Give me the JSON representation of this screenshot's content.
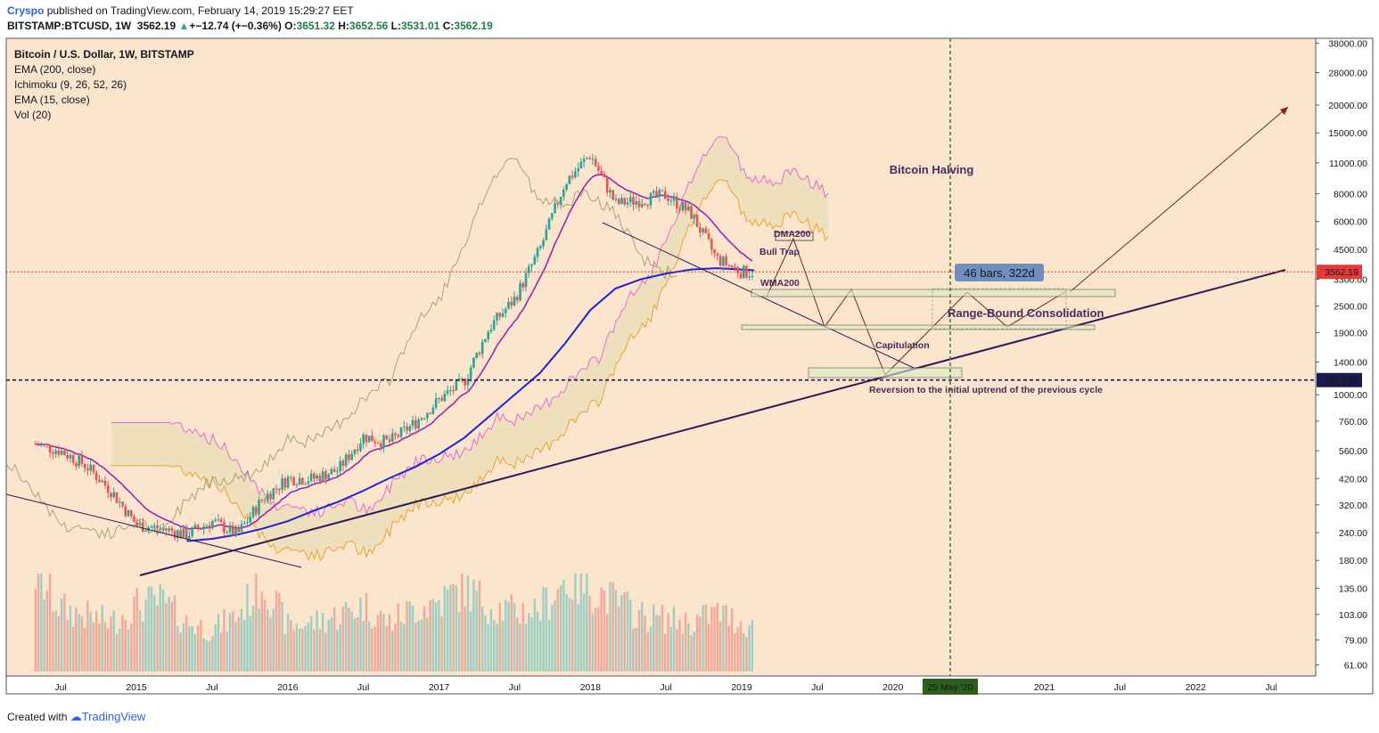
{
  "header": {
    "author": "Cryspo",
    "published_text": "published on TradingView.com, February 14, 2019 15:29:27 EET",
    "symbol": "BITSTAMP:BTCUSD, 1W",
    "last": "3562.19",
    "change": "+−12.74 (+−0.36%)",
    "open_label": "O:",
    "open": "3651.32",
    "high_label": "H:",
    "high": "3652.56",
    "low_label": "L:",
    "low": "3531.01",
    "close_label": "C:",
    "close": "3562.19"
  },
  "legend": {
    "title": "Bitcoin / U.S. Dollar, 1W, BITSTAMP",
    "indicators": [
      "EMA (200, close)",
      "Ichimoku (9, 26, 52, 26)",
      "EMA (15, close)",
      "Vol (20)"
    ]
  },
  "colors": {
    "background": "#fbe5cd",
    "candle_up": "#26a69a",
    "candle_down": "#ef5350",
    "ema200": "#1f23d6",
    "ema15": "#9c27b0",
    "cloud_bear": "#f9c9b0",
    "cloud_bull": "#e6dcb0",
    "trendline": "#2c1a5c",
    "halving_line": "#2e7d32",
    "price_marker": "#e53935",
    "support_marker": "#1a1a4e",
    "bars_badge": "#6f8fbf"
  },
  "chart_data": {
    "type": "candlestick",
    "scale": "log",
    "ylim": [
      55,
      45000
    ],
    "x": [
      "2014-05",
      "2014-07",
      "2014-09",
      "2014-11",
      "2015-01",
      "2015-03",
      "2015-05",
      "2015-07",
      "2015-09",
      "2015-11",
      "2016-01",
      "2016-03",
      "2016-05",
      "2016-07",
      "2016-09",
      "2016-11",
      "2017-01",
      "2017-03",
      "2017-05",
      "2017-07",
      "2017-09",
      "2017-11",
      "2018-01",
      "2018-03",
      "2018-05",
      "2018-07",
      "2018-09",
      "2018-11",
      "2019-01",
      "2019-02"
    ],
    "close": [
      600,
      560,
      480,
      370,
      260,
      250,
      235,
      270,
      235,
      340,
      420,
      420,
      460,
      650,
      610,
      740,
      950,
      1150,
      2000,
      2700,
      4500,
      9000,
      12000,
      7200,
      7500,
      7900,
      6500,
      4100,
      3550,
      3562.19
    ],
    "volume": [
      140,
      90,
      80,
      70,
      95,
      100,
      70,
      60,
      80,
      130,
      65,
      70,
      80,
      95,
      70,
      90,
      100,
      120,
      95,
      85,
      90,
      130,
      120,
      100,
      80,
      75,
      70,
      85,
      70,
      62
    ],
    "ema200": [
      null,
      null,
      null,
      null,
      null,
      null,
      220,
      225,
      235,
      250,
      270,
      300,
      330,
      370,
      420,
      470,
      540,
      640,
      800,
      1000,
      1250,
      1700,
      2400,
      3000,
      3300,
      3500,
      3650,
      3700,
      3650,
      3620
    ],
    "price_line": 3562.19,
    "support_level": 1163.0,
    "halving_date": "25 May '20",
    "bars_badge": "46 bars, 322d",
    "y_ticks": [
      "38000.00",
      "28000.00",
      "20000.00",
      "15000.00",
      "11000.00",
      "8000.00",
      "6000.00",
      "4500.00",
      "3300.00",
      "2500.00",
      "1900.00",
      "1400.00",
      "1000.00",
      "760.00",
      "560.00",
      "420.00",
      "320.00",
      "240.00",
      "180.00",
      "135.00",
      "103.00",
      "79.00",
      "61.00"
    ],
    "x_ticks": [
      "Jul",
      "2015",
      "Jul",
      "2016",
      "Jul",
      "2017",
      "Jul",
      "2018",
      "Jul",
      "2019",
      "Jul",
      "2020",
      "Jul",
      "2021",
      "Jul",
      "2022",
      "Jul"
    ],
    "annotations": {
      "dma200": "DMA200",
      "bull_trap": "Bull Trap",
      "wma200": "WMA200",
      "halving": "Bitcoin Halving",
      "range": "Range-Bound Consolidation",
      "capitulation": "Capitulation",
      "reversion": "Reversion to the initial uptrend of the previous cycle"
    }
  },
  "footer": {
    "created_with": "Created with",
    "brand": "TradingView"
  }
}
